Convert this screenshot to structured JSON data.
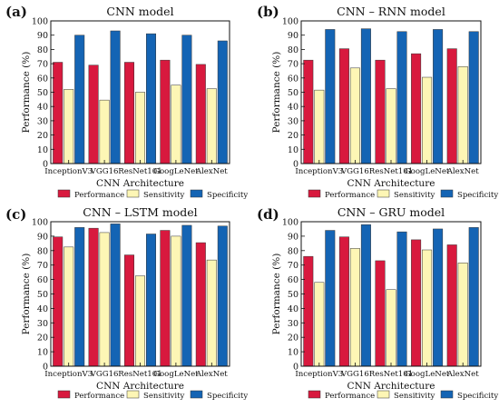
{
  "figure": {
    "legend_items": [
      "Performance",
      "Sensitivity",
      "Specificity"
    ],
    "colors": {
      "Performance": "#d8193e",
      "Sensitivity": "#fdf6b5",
      "Specificity": "#1464b4"
    }
  },
  "chart_data": [
    {
      "panel_label": "(a)",
      "type": "bar",
      "title": "CNN model",
      "xlabel": "CNN Architecture",
      "ylabel": "Performance (%)",
      "ylim": [
        0,
        100
      ],
      "yticks": [
        0,
        10,
        20,
        30,
        40,
        50,
        60,
        70,
        80,
        90,
        100
      ],
      "categories": [
        "InceptionV3",
        "VGG16",
        "ResNet101",
        "GoogLeNet",
        "AlexNet"
      ],
      "series": [
        {
          "name": "Performance",
          "values": [
            71,
            69,
            71,
            72.5,
            69.5
          ]
        },
        {
          "name": "Sensitivity",
          "values": [
            52,
            44.5,
            50,
            55,
            52.5
          ]
        },
        {
          "name": "Specificity",
          "values": [
            90,
            93,
            91,
            90,
            86
          ]
        }
      ],
      "legend": "bottom"
    },
    {
      "panel_label": "(b)",
      "type": "bar",
      "title": "CNN – RNN model",
      "xlabel": "CNN Architecture",
      "ylabel": "Performance (%)",
      "ylim": [
        0,
        100
      ],
      "yticks": [
        0,
        10,
        20,
        30,
        40,
        50,
        60,
        70,
        80,
        90,
        100
      ],
      "categories": [
        "InceptionV3",
        "VGG16",
        "ResNet101",
        "GoogLeNet",
        "AlexNet"
      ],
      "series": [
        {
          "name": "Performance",
          "values": [
            72.5,
            80.5,
            72.5,
            77,
            80.5
          ]
        },
        {
          "name": "Sensitivity",
          "values": [
            51.5,
            67,
            52.5,
            60.5,
            68
          ]
        },
        {
          "name": "Specificity",
          "values": [
            94,
            94.5,
            92.5,
            94,
            92.5
          ]
        }
      ],
      "legend": "bottom"
    },
    {
      "panel_label": "(c)",
      "type": "bar",
      "title": "CNN – LSTM model",
      "xlabel": "CNN Architecture",
      "ylabel": "Performance (%)",
      "ylim": [
        0,
        100
      ],
      "yticks": [
        0,
        10,
        20,
        30,
        40,
        50,
        60,
        70,
        80,
        90,
        100
      ],
      "categories": [
        "InceptionV3",
        "VGG16",
        "ResNet101",
        "GoogLeNet",
        "AlexNet"
      ],
      "series": [
        {
          "name": "Performance",
          "values": [
            89.5,
            95.5,
            77,
            94,
            85.5
          ]
        },
        {
          "name": "Sensitivity",
          "values": [
            82.5,
            92.5,
            62.5,
            90,
            73.5
          ]
        },
        {
          "name": "Specificity",
          "values": [
            96,
            98.5,
            91.5,
            97.5,
            97
          ]
        }
      ],
      "legend": "bottom"
    },
    {
      "panel_label": "(d)",
      "type": "bar",
      "title": "CNN – GRU model",
      "xlabel": "CNN Architecture",
      "ylabel": "Performance (%)",
      "ylim": [
        0,
        100
      ],
      "yticks": [
        0,
        10,
        20,
        30,
        40,
        50,
        60,
        70,
        80,
        90,
        100
      ],
      "categories": [
        "InceptionV3",
        "VGG16",
        "ResNet101",
        "GoogLeNet",
        "AlexNet"
      ],
      "series": [
        {
          "name": "Performance",
          "values": [
            76,
            89.5,
            73,
            87.5,
            84
          ]
        },
        {
          "name": "Sensitivity",
          "values": [
            58,
            81.5,
            53,
            80.5,
            71.5
          ]
        },
        {
          "name": "Specificity",
          "values": [
            94,
            98,
            93,
            95,
            96
          ]
        }
      ],
      "legend": "bottom"
    }
  ]
}
